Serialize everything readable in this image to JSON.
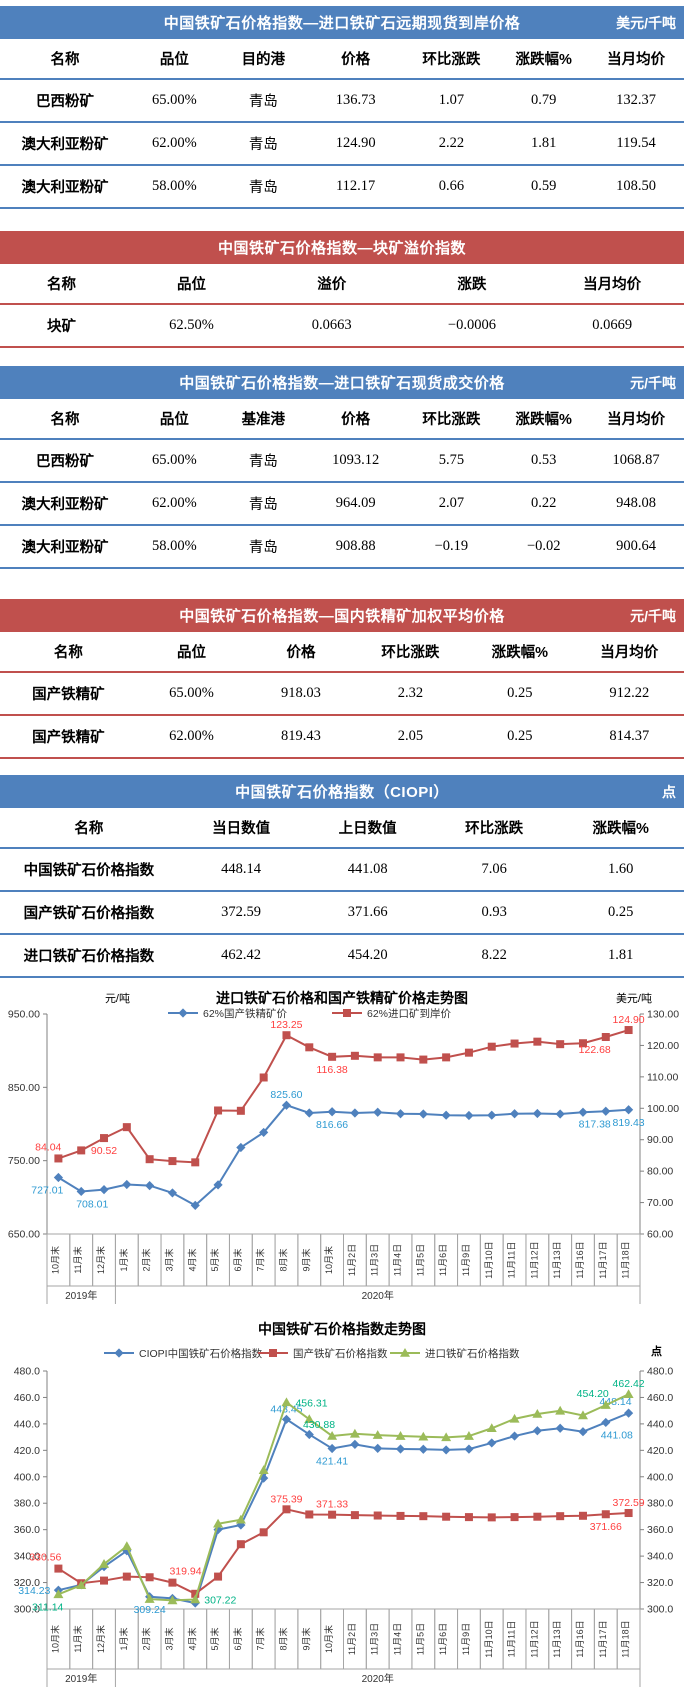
{
  "colors": {
    "blue_header": "#4f81bd",
    "red_header": "#c0504d",
    "series_blue": "#4f81bd",
    "series_red": "#c0504d",
    "series_green": "#9bbb59",
    "label_blue": "#2e9ad2",
    "label_red": "#ff4040",
    "label_green": "#00b386"
  },
  "tables": [
    {
      "id": "import-forward",
      "title": "中国铁矿石价格指数—进口铁矿石远期现货到岸价格",
      "unit": "美元/千吨",
      "theme": "blue",
      "columns": [
        "名称",
        "品位",
        "目的港",
        "价格",
        "环比涨跌",
        "涨跌幅%",
        "当月均价"
      ],
      "rows": [
        [
          "巴西粉矿",
          "65.00%",
          "青岛",
          "136.73",
          "1.07",
          "0.79",
          "132.37"
        ],
        [
          "澳大利亚粉矿",
          "62.00%",
          "青岛",
          "124.90",
          "2.22",
          "1.81",
          "119.54"
        ],
        [
          "澳大利亚粉矿",
          "58.00%",
          "青岛",
          "112.17",
          "0.66",
          "0.59",
          "108.50"
        ]
      ]
    },
    {
      "id": "lump-premium",
      "title": "中国铁矿石价格指数—块矿溢价指数",
      "unit": "",
      "theme": "red",
      "columns": [
        "名称",
        "品位",
        "溢价",
        "涨跌",
        "当月均价"
      ],
      "rows": [
        [
          "块矿",
          "62.50%",
          "0.0663",
          "−0.0006",
          "0.0669"
        ]
      ]
    },
    {
      "id": "import-spot",
      "title": "中国铁矿石价格指数—进口铁矿石现货成交价格",
      "unit": "元/千吨",
      "theme": "blue",
      "columns": [
        "名称",
        "品位",
        "基准港",
        "价格",
        "环比涨跌",
        "涨跌幅%",
        "当月均价"
      ],
      "rows": [
        [
          "巴西粉矿",
          "65.00%",
          "青岛",
          "1093.12",
          "5.75",
          "0.53",
          "1068.87"
        ],
        [
          "澳大利亚粉矿",
          "62.00%",
          "青岛",
          "964.09",
          "2.07",
          "0.22",
          "948.08"
        ],
        [
          "澳大利亚粉矿",
          "58.00%",
          "青岛",
          "908.88",
          "−0.19",
          "−0.02",
          "900.64"
        ]
      ]
    },
    {
      "id": "domestic-concentrate",
      "title": "中国铁矿石价格指数—国内铁精矿加权平均价格",
      "unit": "元/千吨",
      "theme": "red",
      "columns": [
        "名称",
        "品位",
        "价格",
        "环比涨跌",
        "涨跌幅%",
        "当月均价"
      ],
      "rows": [
        [
          "国产铁精矿",
          "65.00%",
          "918.03",
          "2.32",
          "0.25",
          "912.22"
        ],
        [
          "国产铁精矿",
          "62.00%",
          "819.43",
          "2.05",
          "0.25",
          "814.37"
        ]
      ]
    },
    {
      "id": "ciopi",
      "title": "中国铁矿石价格指数（CIOPI）",
      "unit": "点",
      "theme": "blue",
      "columns": [
        "名称",
        "当日数值",
        "上日数值",
        "环比涨跌",
        "涨跌幅%"
      ],
      "rows": [
        [
          "中国铁矿石价格指数",
          "448.14",
          "441.08",
          "7.06",
          "1.60"
        ],
        [
          "国产铁矿石价格指数",
          "372.59",
          "371.66",
          "0.93",
          "0.25"
        ],
        [
          "进口铁矿石价格指数",
          "462.42",
          "454.20",
          "8.22",
          "1.81"
        ]
      ]
    }
  ],
  "chart_data": [
    {
      "type": "line",
      "title": "进口铁矿石价格和国产铁精矿价格走势图",
      "grid": false,
      "legend_position": "top",
      "left_axis": {
        "unit": "元/吨",
        "min": 650,
        "max": 950,
        "step": 100,
        "decimals": 2
      },
      "right_axis": {
        "unit": "美元/吨",
        "min": 60,
        "max": 130,
        "step": 10,
        "decimals": 2
      },
      "categories": [
        "10月末",
        "11月末",
        "12月末",
        "1月末",
        "2月末",
        "3月末",
        "4月末",
        "5月末",
        "6月末",
        "7月末",
        "8月末",
        "9月末",
        "10月末",
        "11月2日",
        "11月3日",
        "11月4日",
        "11月5日",
        "11月6日",
        "11月9日",
        "11月10日",
        "11月11日",
        "11月12日",
        "11月13日",
        "11月16日",
        "11月17日",
        "11月18日"
      ],
      "year_groups": [
        {
          "label": "2019年",
          "count": 3
        },
        {
          "label": "2020年",
          "count": 23
        }
      ],
      "series": [
        {
          "name": "62%国产铁精矿价",
          "axis": "left",
          "marker": "diamond",
          "color": "#4f81bd",
          "label_color": "#2e9ad2",
          "values": [
            727.01,
            708.01,
            710.5,
            717.5,
            716.0,
            706.0,
            689.0,
            717.0,
            768.0,
            788.5,
            825.6,
            815.0,
            816.66,
            815.0,
            816.0,
            814.0,
            813.6,
            812.0,
            811.6,
            812.0,
            814.0,
            814.3,
            813.6,
            816.0,
            817.38,
            819.43
          ],
          "point_labels": [
            {
              "i": 0,
              "text": "727.01",
              "pos": "below-left"
            },
            {
              "i": 1,
              "text": "708.01",
              "pos": "below-right"
            },
            {
              "i": 10,
              "text": "825.60",
              "pos": "above"
            },
            {
              "i": 12,
              "text": "816.66",
              "pos": "below"
            },
            {
              "i": 24,
              "text": "817.38",
              "pos": "below-left"
            },
            {
              "i": 25,
              "text": "819.43",
              "pos": "below"
            }
          ]
        },
        {
          "name": "62%进口矿到岸价",
          "axis": "right",
          "marker": "square",
          "color": "#c0504d",
          "label_color": "#ff4040",
          "values": [
            84.04,
            86.6,
            90.52,
            94.0,
            83.8,
            83.2,
            82.8,
            99.3,
            99.2,
            109.8,
            123.25,
            119.4,
            116.38,
            116.7,
            116.2,
            116.2,
            115.5,
            116.2,
            117.7,
            119.6,
            120.6,
            121.2,
            120.4,
            120.7,
            122.68,
            124.9
          ],
          "point_labels": [
            {
              "i": 0,
              "text": "84.04",
              "pos": "above-left"
            },
            {
              "i": 2,
              "text": "90.52",
              "pos": "below"
            },
            {
              "i": 10,
              "text": "123.25",
              "pos": "above"
            },
            {
              "i": 12,
              "text": "116.38",
              "pos": "below"
            },
            {
              "i": 24,
              "text": "122.68",
              "pos": "below-left"
            },
            {
              "i": 25,
              "text": "124.90",
              "pos": "above"
            }
          ]
        }
      ]
    },
    {
      "type": "line",
      "title": "中国铁矿石价格指数走势图",
      "unit": "点",
      "grid": false,
      "legend_position": "top",
      "left_axis": {
        "unit": "",
        "min": 300,
        "max": 480,
        "step": 20,
        "decimals": 1
      },
      "right_axis": {
        "unit": "",
        "min": 300,
        "max": 480,
        "step": 20,
        "decimals": 1
      },
      "categories": [
        "10月末",
        "11月末",
        "12月末",
        "1月末",
        "2月末",
        "3月末",
        "4月末",
        "5月末",
        "6月末",
        "7月末",
        "8月末",
        "9月末",
        "10月末",
        "11月2日",
        "11月3日",
        "11月4日",
        "11月5日",
        "11月6日",
        "11月9日",
        "11月10日",
        "11月11日",
        "11月12日",
        "11月13日",
        "11月16日",
        "11月17日",
        "11月18日"
      ],
      "year_groups": [
        {
          "label": "2019年",
          "count": 3
        },
        {
          "label": "2020年",
          "count": 23
        }
      ],
      "series": [
        {
          "name": "CIOPI中国铁矿石价格指数",
          "axis": "left",
          "marker": "diamond",
          "color": "#4f81bd",
          "label_color": "#2e9ad2",
          "values": [
            314.23,
            318.3,
            332.0,
            344.0,
            309.24,
            308.0,
            304.5,
            360.0,
            363.5,
            399.0,
            443.45,
            432.0,
            421.41,
            424.5,
            421.5,
            421.0,
            420.8,
            420.3,
            420.9,
            425.6,
            430.8,
            434.8,
            436.7,
            434.1,
            441.08,
            448.14
          ],
          "point_labels": [
            {
              "i": 0,
              "text": "314.23",
              "pos": "left"
            },
            {
              "i": 4,
              "text": "309.24",
              "pos": "below"
            },
            {
              "i": 10,
              "text": "443.45",
              "pos": "above"
            },
            {
              "i": 12,
              "text": "421.41",
              "pos": "below"
            },
            {
              "i": 24,
              "text": "441.08",
              "pos": "below-right"
            },
            {
              "i": 25,
              "text": "448.14",
              "pos": "above-left"
            }
          ]
        },
        {
          "name": "国产铁矿石价格指数",
          "axis": "left",
          "marker": "square",
          "color": "#c0504d",
          "label_color": "#ff4040",
          "values": [
            330.56,
            319.5,
            321.5,
            324.5,
            324.0,
            319.94,
            311.5,
            324.5,
            349.0,
            358.0,
            375.39,
            371.5,
            371.33,
            371.0,
            370.7,
            370.4,
            370.2,
            369.8,
            369.5,
            369.3,
            369.5,
            369.8,
            370.2,
            370.5,
            371.66,
            372.59
          ],
          "point_labels": [
            {
              "i": 0,
              "text": "330.56",
              "pos": "above-left"
            },
            {
              "i": 5,
              "text": "319.94",
              "pos": "above-right"
            },
            {
              "i": 10,
              "text": "375.39",
              "pos": "above"
            },
            {
              "i": 12,
              "text": "371.33",
              "pos": "above"
            },
            {
              "i": 24,
              "text": "371.66",
              "pos": "below"
            },
            {
              "i": 25,
              "text": "372.59",
              "pos": "above"
            }
          ]
        },
        {
          "name": "进口铁矿石价格指数",
          "axis": "left",
          "marker": "triangle",
          "color": "#9bbb59",
          "label_color": "#00b386",
          "values": [
            311.14,
            318.0,
            334.0,
            347.5,
            307.5,
            306.5,
            307.22,
            364.5,
            367.5,
            405.0,
            456.31,
            443.5,
            430.88,
            432.5,
            431.5,
            430.8,
            430.3,
            429.8,
            430.8,
            436.7,
            443.8,
            447.5,
            449.9,
            446.4,
            454.2,
            462.42
          ],
          "point_labels": [
            {
              "i": 0,
              "text": "311.14",
              "pos": "below-left"
            },
            {
              "i": 6,
              "text": "307.22",
              "pos": "right"
            },
            {
              "i": 10,
              "text": "456.31",
              "pos": "right"
            },
            {
              "i": 12,
              "text": "430.88",
              "pos": "above-left"
            },
            {
              "i": 24,
              "text": "454.20",
              "pos": "above-left"
            },
            {
              "i": 25,
              "text": "462.42",
              "pos": "above"
            }
          ]
        }
      ]
    }
  ]
}
